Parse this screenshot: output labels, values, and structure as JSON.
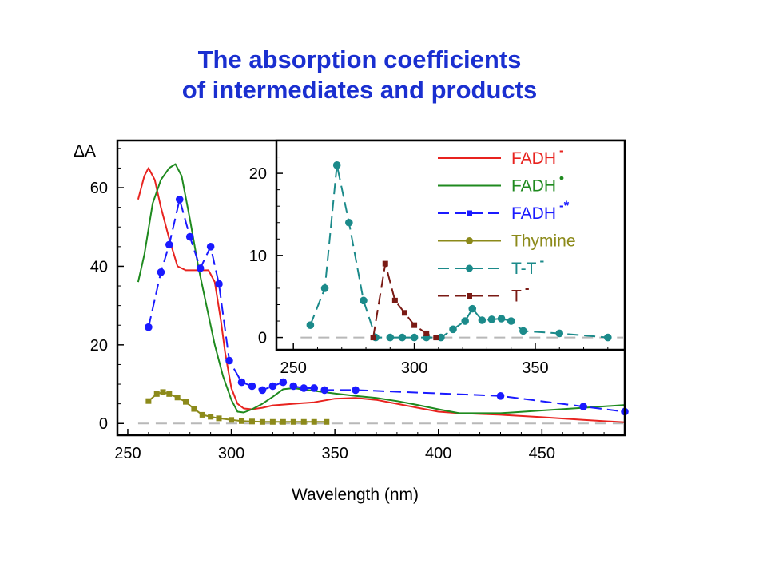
{
  "slide": {
    "title_line1": "The absorption coefficients",
    "title_line2": "of intermediates and products"
  },
  "chart_data": [
    {
      "type": "line",
      "title": "",
      "xlabel": "Wavelength (nm)",
      "ylabel": "ΔA",
      "xlim": [
        245,
        490
      ],
      "ylim": [
        -3,
        72
      ],
      "x_ticks": [
        250,
        300,
        350,
        400,
        450
      ],
      "y_ticks": [
        0,
        20,
        40,
        60
      ],
      "baseline": 0,
      "series": [
        {
          "color": "#e8231f",
          "style": "solid",
          "marker": "none",
          "points": [
            [
              255,
              57
            ],
            [
              258,
              63
            ],
            [
              260,
              65
            ],
            [
              263,
              62
            ],
            [
              266,
              55
            ],
            [
              270,
              47
            ],
            [
              274,
              40
            ],
            [
              278,
              39
            ],
            [
              282,
              39
            ],
            [
              286,
              39
            ],
            [
              289,
              39
            ],
            [
              292,
              36
            ],
            [
              295,
              26
            ],
            [
              297,
              18
            ],
            [
              300,
              9
            ],
            [
              303,
              5
            ],
            [
              306,
              3.8
            ],
            [
              310,
              3.6
            ],
            [
              315,
              4
            ],
            [
              320,
              4.6
            ],
            [
              330,
              5
            ],
            [
              340,
              5.4
            ],
            [
              350,
              6.3
            ],
            [
              360,
              6.5
            ],
            [
              370,
              6
            ],
            [
              380,
              5
            ],
            [
              390,
              4
            ],
            [
              400,
              3
            ],
            [
              410,
              2.6
            ],
            [
              430,
              2.2
            ],
            [
              450,
              1.6
            ],
            [
              470,
              0.9
            ],
            [
              490,
              0.3
            ]
          ]
        },
        {
          "color": "#1f8a1f",
          "style": "solid",
          "marker": "none",
          "points": [
            [
              255,
              36
            ],
            [
              258,
              43
            ],
            [
              262,
              56
            ],
            [
              266,
              62
            ],
            [
              270,
              65
            ],
            [
              273,
              66
            ],
            [
              276,
              63
            ],
            [
              280,
              52
            ],
            [
              284,
              40
            ],
            [
              288,
              30
            ],
            [
              292,
              20
            ],
            [
              296,
              12
            ],
            [
              300,
              6
            ],
            [
              303,
              3
            ],
            [
              306,
              2.8
            ],
            [
              310,
              3.6
            ],
            [
              315,
              5
            ],
            [
              320,
              6.8
            ],
            [
              325,
              8.7
            ],
            [
              330,
              9
            ],
            [
              340,
              8.3
            ],
            [
              350,
              7.6
            ],
            [
              360,
              7
            ],
            [
              370,
              6.5
            ],
            [
              380,
              5.7
            ],
            [
              390,
              4.7
            ],
            [
              400,
              3.6
            ],
            [
              410,
              2.6
            ],
            [
              430,
              2.6
            ],
            [
              450,
              3.3
            ],
            [
              470,
              4
            ],
            [
              490,
              4.7
            ]
          ]
        },
        {
          "color": "#1a1aff",
          "style": "dashed",
          "marker": "circle",
          "points": [
            [
              260,
              24.5
            ],
            [
              266,
              38.5
            ],
            [
              270,
              45.5
            ],
            [
              275,
              57
            ],
            [
              280,
              47.5
            ],
            [
              285,
              39.5
            ],
            [
              290,
              45
            ],
            [
              294,
              35.5
            ],
            [
              299,
              16
            ],
            [
              305,
              10.5
            ],
            [
              310,
              9.5
            ],
            [
              315,
              8.5
            ],
            [
              320,
              9.5
            ],
            [
              325,
              10.5
            ],
            [
              330,
              9.5
            ],
            [
              335,
              9
            ],
            [
              340,
              9
            ],
            [
              345,
              8.5
            ],
            [
              360,
              8.5
            ],
            [
              430,
              7
            ],
            [
              470,
              4.3
            ],
            [
              490,
              3
            ]
          ]
        },
        {
          "color": "#8c8a1a",
          "style": "solid",
          "marker": "square",
          "points": [
            [
              260,
              5.7
            ],
            [
              264,
              7.5
            ],
            [
              267,
              8
            ],
            [
              270,
              7.5
            ],
            [
              274,
              6.6
            ],
            [
              278,
              5.5
            ],
            [
              282,
              3.7
            ],
            [
              286,
              2.2
            ],
            [
              290,
              1.7
            ],
            [
              294,
              1.3
            ],
            [
              300,
              0.9
            ],
            [
              305,
              0.6
            ],
            [
              310,
              0.5
            ],
            [
              315,
              0.4
            ],
            [
              320,
              0.4
            ],
            [
              325,
              0.4
            ],
            [
              330,
              0.4
            ],
            [
              335,
              0.4
            ],
            [
              340,
              0.4
            ],
            [
              346,
              0.4
            ]
          ]
        }
      ]
    },
    {
      "type": "line",
      "title": "",
      "xlabel": "",
      "ylabel": "",
      "xlim": [
        243,
        387
      ],
      "ylim": [
        -1.5,
        24
      ],
      "x_ticks": [
        250,
        300,
        350
      ],
      "y_ticks": [
        0,
        10,
        20
      ],
      "baseline": 0,
      "legend": {
        "position": "top-right",
        "entries": [
          {
            "label": "FADH",
            "sup": "-",
            "color": "#e8231f",
            "style": "solid",
            "marker": "none"
          },
          {
            "label": "FADH",
            "sup": "•",
            "color": "#1f8a1f",
            "style": "solid",
            "marker": "none"
          },
          {
            "label": "FADH",
            "sup": "-*",
            "color": "#1a1aff",
            "style": "dashed",
            "marker": "square"
          },
          {
            "label": "Thymine",
            "sup": "",
            "color": "#8c8a1a",
            "style": "solid",
            "marker": "circle"
          },
          {
            "label": "T-T",
            "sup": "-",
            "color": "#1b8a8a",
            "style": "dashed",
            "marker": "circle"
          },
          {
            "label": "T",
            "sup": "-",
            "color": "#7a1a14",
            "style": "dashed",
            "marker": "square"
          }
        ]
      },
      "series": [
        {
          "color": "#1b8a8a",
          "style": "dashed",
          "marker": "circle",
          "points": [
            [
              257,
              1.5
            ],
            [
              263,
              6
            ],
            [
              268,
              21
            ],
            [
              273,
              14
            ],
            [
              279,
              4.5
            ],
            [
              284,
              0
            ],
            [
              290,
              0
            ],
            [
              295,
              0
            ],
            [
              300,
              0
            ],
            [
              305,
              0
            ],
            [
              311,
              0
            ],
            [
              316,
              1
            ],
            [
              321,
              2
            ],
            [
              324,
              3.5
            ],
            [
              328,
              2.1
            ],
            [
              332,
              2.2
            ],
            [
              336,
              2.3
            ],
            [
              340,
              2
            ],
            [
              345,
              0.8
            ],
            [
              360,
              0.5
            ],
            [
              380,
              0
            ]
          ]
        },
        {
          "color": "#7a1a14",
          "style": "dashed",
          "marker": "square",
          "points": [
            [
              283,
              0
            ],
            [
              288,
              9
            ],
            [
              292,
              4.5
            ],
            [
              296,
              3
            ],
            [
              300,
              1.5
            ],
            [
              305,
              0.5
            ],
            [
              309,
              0
            ]
          ]
        }
      ]
    }
  ]
}
